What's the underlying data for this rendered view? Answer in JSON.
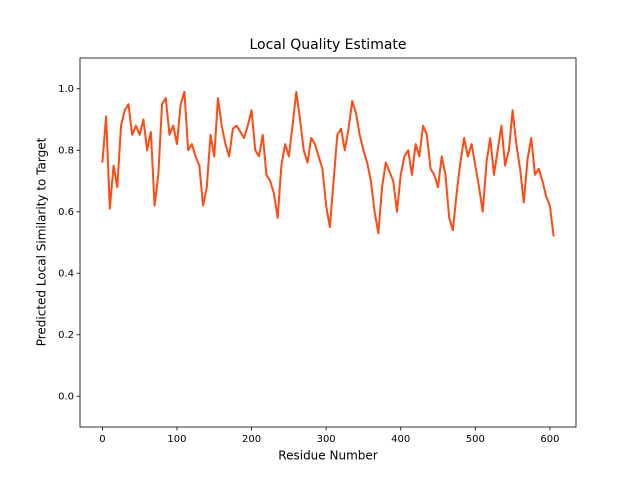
{
  "chart_data": {
    "type": "line",
    "title": "Local Quality Estimate",
    "x_label": "Residue Number",
    "y_label": "Predicted Local Similarity to Target",
    "x": [
      0,
      5,
      10,
      15,
      20,
      25,
      30,
      35,
      40,
      45,
      50,
      55,
      60,
      65,
      70,
      75,
      80,
      85,
      90,
      95,
      100,
      105,
      110,
      115,
      120,
      125,
      130,
      135,
      140,
      145,
      150,
      155,
      160,
      165,
      170,
      175,
      180,
      185,
      190,
      195,
      200,
      205,
      210,
      215,
      220,
      225,
      230,
      235,
      240,
      245,
      250,
      255,
      260,
      265,
      270,
      275,
      280,
      285,
      290,
      295,
      300,
      305,
      310,
      315,
      320,
      325,
      330,
      335,
      340,
      345,
      350,
      355,
      360,
      365,
      370,
      375,
      380,
      385,
      390,
      395,
      400,
      405,
      410,
      415,
      420,
      425,
      430,
      435,
      440,
      445,
      450,
      455,
      460,
      465,
      470,
      475,
      480,
      485,
      490,
      495,
      500,
      505,
      510,
      515,
      520,
      525,
      530,
      535,
      540,
      545,
      550,
      555,
      560,
      565,
      570,
      575,
      580,
      585,
      590,
      595,
      600,
      605
    ],
    "series": [
      {
        "color": "#ff4a14",
        "values": [
          0.76,
          0.91,
          0.61,
          0.75,
          0.68,
          0.88,
          0.93,
          0.95,
          0.85,
          0.88,
          0.85,
          0.9,
          0.8,
          0.86,
          0.62,
          0.72,
          0.95,
          0.97,
          0.85,
          0.88,
          0.82,
          0.95,
          0.99,
          0.8,
          0.82,
          0.78,
          0.75,
          0.62,
          0.68,
          0.85,
          0.78,
          0.97,
          0.88,
          0.82,
          0.78,
          0.87,
          0.88,
          0.86,
          0.84,
          0.88,
          0.93,
          0.8,
          0.78,
          0.85,
          0.72,
          0.7,
          0.66,
          0.58,
          0.75,
          0.82,
          0.78,
          0.88,
          0.99,
          0.9,
          0.8,
          0.76,
          0.84,
          0.82,
          0.78,
          0.74,
          0.62,
          0.55,
          0.7,
          0.85,
          0.87,
          0.8,
          0.87,
          0.96,
          0.92,
          0.85,
          0.8,
          0.76,
          0.7,
          0.6,
          0.53,
          0.68,
          0.76,
          0.73,
          0.7,
          0.6,
          0.72,
          0.78,
          0.8,
          0.72,
          0.82,
          0.78,
          0.88,
          0.85,
          0.74,
          0.72,
          0.68,
          0.78,
          0.72,
          0.58,
          0.54,
          0.66,
          0.76,
          0.84,
          0.78,
          0.82,
          0.75,
          0.68,
          0.6,
          0.76,
          0.84,
          0.72,
          0.8,
          0.88,
          0.75,
          0.8,
          0.93,
          0.82,
          0.74,
          0.63,
          0.77,
          0.84,
          0.72,
          0.74,
          0.7,
          0.65,
          0.62,
          0.52
        ]
      }
    ],
    "xlim": [
      -30,
      635
    ],
    "xticks": [
      0,
      100,
      200,
      300,
      400,
      500,
      600
    ],
    "ylim": [
      -0.1,
      1.1
    ],
    "yticks": [
      {
        "value": 0,
        "label": "0.0"
      },
      0.2,
      0.4,
      0.6,
      0.8,
      {
        "value": 1,
        "label": "1.0"
      }
    ]
  }
}
